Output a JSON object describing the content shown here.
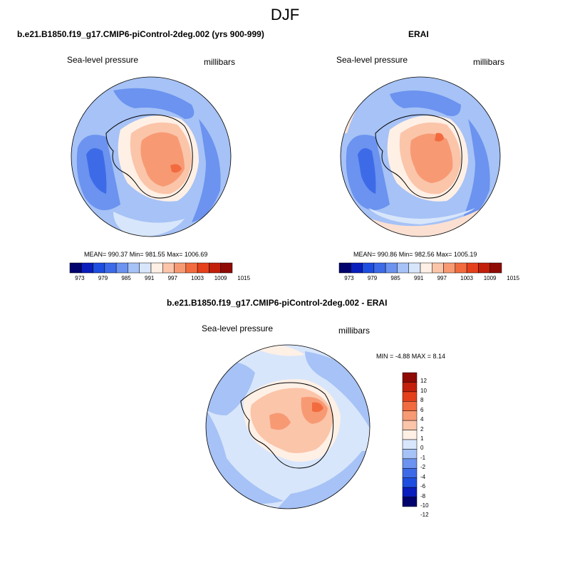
{
  "figure_title": "DJF",
  "colors": {
    "abs_levels": [
      "#03036e",
      "#0a1ebd",
      "#1e4ee0",
      "#3d6be8",
      "#6b93ef",
      "#a6c2f6",
      "#d8e6fb",
      "#fff0e6",
      "#fbc5aa",
      "#f79a74",
      "#f26b3f",
      "#e5401c",
      "#c2200b",
      "#8f0a04"
    ],
    "diff_levels": [
      "#03036e",
      "#0a1ebd",
      "#1e4ee0",
      "#3d6be8",
      "#6b93ef",
      "#a6c2f6",
      "#d8e6fb",
      "#fff0e6",
      "#fbc5aa",
      "#f79a74",
      "#f26b3f",
      "#e5401c",
      "#c2200b",
      "#8f0a04"
    ]
  },
  "panels": [
    {
      "id": "model",
      "title": "b.e21.B1850.f19_g17.CMIP6-piControl-2deg.002 (yrs 900-999)",
      "left_label": "Sea-level pressure",
      "right_label": "millibars",
      "stats": "MEAN= 990.37  Min= 981.55  Max= 1006.69",
      "colorbar_ticks": [
        "973",
        "979",
        "985",
        "991",
        "997",
        "1003",
        "1009",
        "1015"
      ]
    },
    {
      "id": "obs",
      "title": "ERAI",
      "left_label": "Sea-level pressure",
      "right_label": "millibars",
      "stats": "MEAN= 990.86  Min= 982.56  Max= 1005.19",
      "colorbar_ticks": [
        "973",
        "979",
        "985",
        "991",
        "997",
        "1003",
        "1009",
        "1015"
      ]
    },
    {
      "id": "diff",
      "title": "b.e21.B1850.f19_g17.CMIP6-piControl-2deg.002 - ERAI",
      "left_label": "Sea-level pressure",
      "right_label": "millibars",
      "stats": "MIN =  -4.88 MAX =   8.14",
      "colorbar_ticks": [
        "12",
        "10",
        "8",
        "6",
        "4",
        "2",
        "1",
        "0",
        "-1",
        "-2",
        "-4",
        "-6",
        "-8",
        "-10",
        "-12"
      ]
    }
  ]
}
